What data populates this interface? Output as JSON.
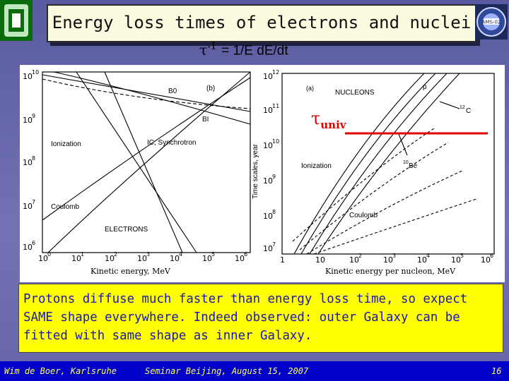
{
  "title": "Energy loss times of electrons and nuclei",
  "formula": {
    "symbol": "τ",
    "exponent": "-1",
    "rhs": "= 1/E dE/dt"
  },
  "left_plot": {
    "panel_tag": "(b)",
    "y_ticks": [
      {
        "base": "10",
        "exp": "10"
      },
      {
        "base": "10",
        "exp": "9"
      },
      {
        "base": "10",
        "exp": "8"
      },
      {
        "base": "10",
        "exp": "7"
      },
      {
        "base": "10",
        "exp": "6"
      }
    ],
    "x_ticks": [
      {
        "base": "10",
        "exp": "0"
      },
      {
        "base": "10",
        "exp": "1"
      },
      {
        "base": "10",
        "exp": "2"
      },
      {
        "base": "10",
        "exp": "3"
      },
      {
        "base": "10",
        "exp": "4"
      },
      {
        "base": "10",
        "exp": "5"
      },
      {
        "base": "10",
        "exp": "6"
      }
    ],
    "labels": {
      "b0": "B0",
      "bi": "BI",
      "ionization": "Ionization",
      "ic": "IC, Synchrotron",
      "coulomb": "Coulomb",
      "electrons": "ELECTRONS"
    },
    "xlabel": "Kinetic energy, MeV"
  },
  "right_plot": {
    "panel_tag": "(a)",
    "y_ticks": [
      {
        "base": "10",
        "exp": "12"
      },
      {
        "base": "10",
        "exp": "11"
      },
      {
        "base": "10",
        "exp": "10"
      },
      {
        "base": "10",
        "exp": "9"
      },
      {
        "base": "10",
        "exp": "8"
      },
      {
        "base": "10",
        "exp": "7"
      }
    ],
    "x_ticks": [
      {
        "base": "1",
        "exp": ""
      },
      {
        "base": "10",
        "exp": ""
      },
      {
        "base": "10",
        "exp": "2"
      },
      {
        "base": "10",
        "exp": "3"
      },
      {
        "base": "10",
        "exp": "4"
      },
      {
        "base": "10",
        "exp": "5"
      },
      {
        "base": "10",
        "exp": "6"
      }
    ],
    "labels": {
      "nucleons": "NUCLEONS",
      "p": "p",
      "c12_pre": "12",
      "c12": "C",
      "ionization": "Ionization",
      "be10_pre": "10",
      "be10": "Be",
      "coulomb": "Coulomb"
    },
    "ylabel": "Time scales, year",
    "xlabel": "Kinetic energy per nucleon, MeV"
  },
  "tau_univ": {
    "symbol": "τ",
    "sub": "univ"
  },
  "note": "Protons diffuse much faster than energy loss time, so expect SAME shape everywhere. Indeed observed: outer Galaxy can be fitted with same shape as inner Galaxy.",
  "footer": {
    "author": "Wim de Boer, Karlsruhe",
    "seminar": "Seminar Beijing, August 15, 2007",
    "page": "16"
  },
  "colors": {
    "title_bg": "#fbfbe0",
    "note_bg": "#ffff00",
    "note_text": "#1a1aaa",
    "footer_bg": "#0000c8",
    "footer_text": "#ffff66",
    "tau_line": "#e00000"
  }
}
